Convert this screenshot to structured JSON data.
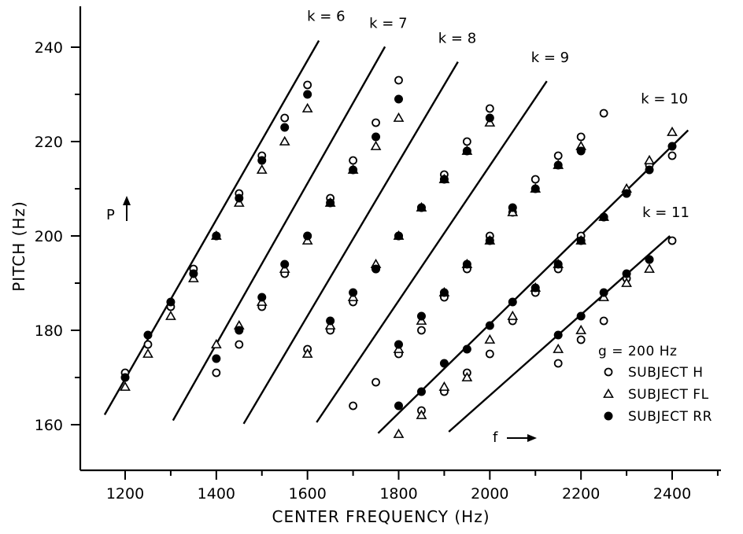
{
  "chart_data": {
    "type": "scatter",
    "title": "",
    "xlabel": "CENTER FREQUENCY  (Hz)",
    "ylabel": "PITCH  (Hz)",
    "xlim": [
      1100,
      2500
    ],
    "ylim": [
      150,
      246
    ],
    "x_ticks": [
      1200,
      1400,
      1600,
      1800,
      2000,
      2200,
      2400
    ],
    "y_ticks": [
      160,
      180,
      200,
      220,
      240
    ],
    "grid": false,
    "legend_position": "bottom-right",
    "legend_title": "g = 200 Hz",
    "annotations": {
      "p_arrow_label": "P",
      "f_arrow_label": "f"
    },
    "fit_lines": [
      {
        "label": "k = 6",
        "x": [
          1155,
          1625
        ],
        "y": [
          162.1,
          241.4
        ]
      },
      {
        "label": "k = 7",
        "x": [
          1305,
          1770
        ],
        "y": [
          160.9,
          240.1
        ]
      },
      {
        "label": "k = 8",
        "x": [
          1460,
          1930
        ],
        "y": [
          160.2,
          236.9
        ]
      },
      {
        "label": "k = 9",
        "x": [
          1620,
          2125
        ],
        "y": [
          160.5,
          232.8
        ]
      },
      {
        "label": "k = 10",
        "x": [
          1755,
          2435
        ],
        "y": [
          158.2,
          222.4
        ]
      },
      {
        "label": "k = 11",
        "x": [
          1910,
          2395
        ],
        "y": [
          158.5,
          200.0
        ]
      }
    ],
    "series": [
      {
        "name": "SUBJECT  H",
        "marker": "open-circle",
        "points": [
          [
            1200,
            171
          ],
          [
            1250,
            177
          ],
          [
            1300,
            185
          ],
          [
            1350,
            193
          ],
          [
            1400,
            200
          ],
          [
            1450,
            209
          ],
          [
            1500,
            217
          ],
          [
            1550,
            225
          ],
          [
            1600,
            232
          ],
          [
            1400,
            171
          ],
          [
            1450,
            177
          ],
          [
            1500,
            185
          ],
          [
            1550,
            192
          ],
          [
            1600,
            200
          ],
          [
            1650,
            208
          ],
          [
            1700,
            216
          ],
          [
            1750,
            224
          ],
          [
            1800,
            233
          ],
          [
            1600,
            176
          ],
          [
            1650,
            180
          ],
          [
            1700,
            186
          ],
          [
            1750,
            193
          ],
          [
            1800,
            200
          ],
          [
            1850,
            206
          ],
          [
            1900,
            213
          ],
          [
            1950,
            220
          ],
          [
            2000,
            227
          ],
          [
            1700,
            164
          ],
          [
            1750,
            169
          ],
          [
            1800,
            175
          ],
          [
            1850,
            180
          ],
          [
            1900,
            187
          ],
          [
            1950,
            193
          ],
          [
            2000,
            200
          ],
          [
            2050,
            205
          ],
          [
            2100,
            212
          ],
          [
            2150,
            217
          ],
          [
            2200,
            221
          ],
          [
            2250,
            226
          ],
          [
            1850,
            163
          ],
          [
            1900,
            167
          ],
          [
            1950,
            171
          ],
          [
            2000,
            175
          ],
          [
            2050,
            182
          ],
          [
            2100,
            188
          ],
          [
            2150,
            193
          ],
          [
            2200,
            200
          ],
          [
            2250,
            204
          ],
          [
            2300,
            209
          ],
          [
            2350,
            215
          ],
          [
            2400,
            217
          ],
          [
            2150,
            173
          ],
          [
            2200,
            178
          ],
          [
            2250,
            182
          ],
          [
            2300,
            191
          ],
          [
            2350,
            195
          ],
          [
            2400,
            199
          ]
        ]
      },
      {
        "name": "SUBJECT  FL",
        "marker": "open-triangle",
        "points": [
          [
            1200,
            168
          ],
          [
            1250,
            175
          ],
          [
            1300,
            183
          ],
          [
            1350,
            191
          ],
          [
            1400,
            200
          ],
          [
            1450,
            207
          ],
          [
            1500,
            214
          ],
          [
            1550,
            220
          ],
          [
            1600,
            227
          ],
          [
            1400,
            177
          ],
          [
            1450,
            181
          ],
          [
            1500,
            186
          ],
          [
            1550,
            193
          ],
          [
            1600,
            199
          ],
          [
            1650,
            207
          ],
          [
            1700,
            214
          ],
          [
            1750,
            219
          ],
          [
            1800,
            225
          ],
          [
            1600,
            175
          ],
          [
            1650,
            181
          ],
          [
            1700,
            187
          ],
          [
            1750,
            194
          ],
          [
            1800,
            200
          ],
          [
            1850,
            206
          ],
          [
            1900,
            212
          ],
          [
            1950,
            218
          ],
          [
            2000,
            224
          ],
          [
            1800,
            176
          ],
          [
            1850,
            182
          ],
          [
            1900,
            188
          ],
          [
            1950,
            194
          ],
          [
            2000,
            199
          ],
          [
            2050,
            205
          ],
          [
            2100,
            210
          ],
          [
            2150,
            215
          ],
          [
            2200,
            219
          ],
          [
            1800,
            158
          ],
          [
            1850,
            162
          ],
          [
            1900,
            168
          ],
          [
            1950,
            170
          ],
          [
            2000,
            178
          ],
          [
            2050,
            183
          ],
          [
            2100,
            189
          ],
          [
            2150,
            194
          ],
          [
            2200,
            199
          ],
          [
            2250,
            204
          ],
          [
            2300,
            210
          ],
          [
            2350,
            216
          ],
          [
            2400,
            222
          ],
          [
            2150,
            176
          ],
          [
            2200,
            180
          ],
          [
            2250,
            187
          ],
          [
            2300,
            190
          ],
          [
            2350,
            193
          ]
        ]
      },
      {
        "name": "SUBJECT  RR",
        "marker": "filled-circle",
        "points": [
          [
            1200,
            170
          ],
          [
            1250,
            179
          ],
          [
            1300,
            186
          ],
          [
            1350,
            192
          ],
          [
            1400,
            200
          ],
          [
            1450,
            208
          ],
          [
            1500,
            216
          ],
          [
            1550,
            223
          ],
          [
            1600,
            230
          ],
          [
            1400,
            174
          ],
          [
            1450,
            180
          ],
          [
            1500,
            187
          ],
          [
            1550,
            194
          ],
          [
            1600,
            200
          ],
          [
            1650,
            207
          ],
          [
            1700,
            214
          ],
          [
            1750,
            221
          ],
          [
            1800,
            229
          ],
          [
            1650,
            182
          ],
          [
            1700,
            188
          ],
          [
            1750,
            193
          ],
          [
            1800,
            200
          ],
          [
            1850,
            206
          ],
          [
            1900,
            212
          ],
          [
            1950,
            218
          ],
          [
            2000,
            225
          ],
          [
            1800,
            177
          ],
          [
            1850,
            183
          ],
          [
            1900,
            188
          ],
          [
            1950,
            194
          ],
          [
            2000,
            199
          ],
          [
            2050,
            206
          ],
          [
            2100,
            210
          ],
          [
            2150,
            215
          ],
          [
            2200,
            218
          ],
          [
            1800,
            164
          ],
          [
            1850,
            167
          ],
          [
            1900,
            173
          ],
          [
            1950,
            176
          ],
          [
            2000,
            181
          ],
          [
            2050,
            186
          ],
          [
            2100,
            189
          ],
          [
            2150,
            194
          ],
          [
            2200,
            199
          ],
          [
            2250,
            204
          ],
          [
            2300,
            209
          ],
          [
            2350,
            214
          ],
          [
            2400,
            219
          ],
          [
            2150,
            179
          ],
          [
            2200,
            183
          ],
          [
            2250,
            188
          ],
          [
            2300,
            192
          ],
          [
            2350,
            195
          ]
        ]
      }
    ]
  }
}
